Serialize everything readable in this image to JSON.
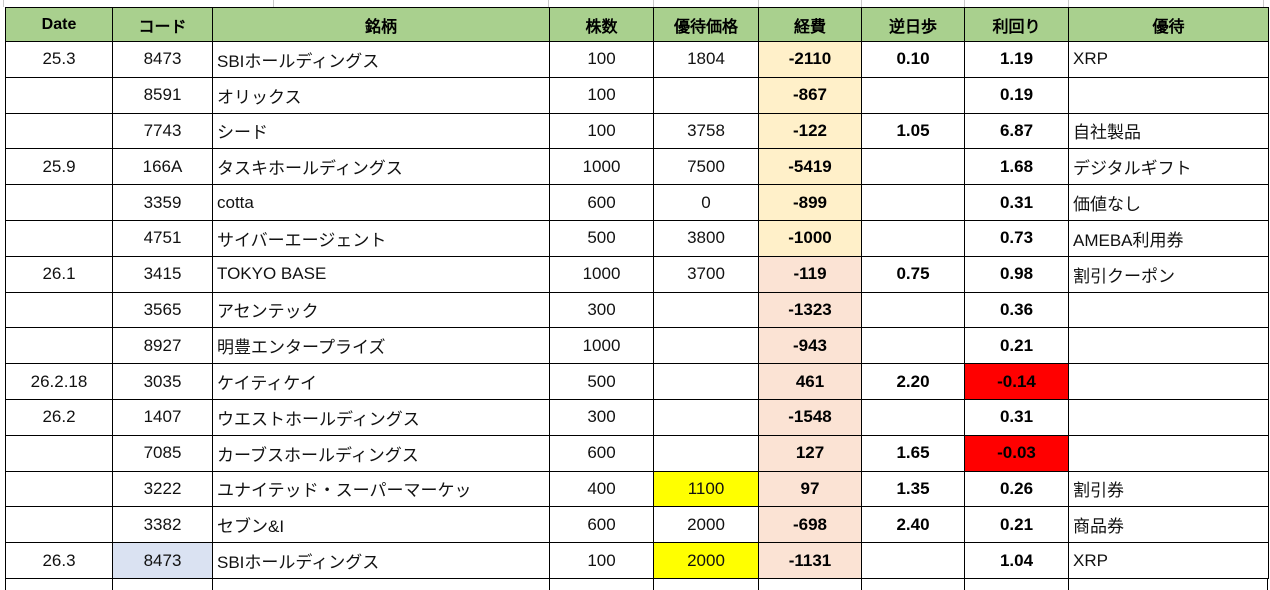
{
  "table": {
    "columns": [
      {
        "key": "date",
        "label": "Date"
      },
      {
        "key": "code",
        "label": "コード"
      },
      {
        "key": "name",
        "label": "銘柄"
      },
      {
        "key": "shares",
        "label": "株数"
      },
      {
        "key": "price",
        "label": "優待価格"
      },
      {
        "key": "expense",
        "label": "経費"
      },
      {
        "key": "gyakuhibu",
        "label": "逆日歩"
      },
      {
        "key": "yield",
        "label": "利回り"
      },
      {
        "key": "benefit",
        "label": "優待"
      }
    ],
    "rows": [
      {
        "date": "25.3",
        "code": "8473",
        "name": "SBIホールディングス",
        "shares": "100",
        "price": "1804",
        "expense": "-2110",
        "gyakuhibu": "0.10",
        "yield": "1.19",
        "benefit": "XRP",
        "expense_bg": "cream"
      },
      {
        "date": "",
        "code": "8591",
        "name": "オリックス",
        "shares": "100",
        "price": "",
        "expense": "-867",
        "gyakuhibu": "",
        "yield": "0.19",
        "benefit": "",
        "expense_bg": "cream"
      },
      {
        "date": "",
        "code": "7743",
        "name": "シード",
        "shares": "100",
        "price": "3758",
        "expense": "-122",
        "gyakuhibu": "1.05",
        "yield": "6.87",
        "benefit": "自社製品",
        "expense_bg": "cream"
      },
      {
        "date": "25.9",
        "code": "166A",
        "name": "タスキホールディングス",
        "shares": "1000",
        "price": "7500",
        "expense": "-5419",
        "gyakuhibu": "",
        "yield": "1.68",
        "benefit": "デジタルギフト",
        "expense_bg": "cream"
      },
      {
        "date": "",
        "code": "3359",
        "name": "cotta",
        "shares": "600",
        "price": "0",
        "expense": "-899",
        "gyakuhibu": "",
        "yield": "0.31",
        "benefit": "価値なし",
        "expense_bg": "cream"
      },
      {
        "date": "",
        "code": "4751",
        "name": "サイバーエージェント",
        "shares": "500",
        "price": "3800",
        "expense": "-1000",
        "gyakuhibu": "",
        "yield": "0.73",
        "benefit": "AMEBA利用券",
        "expense_bg": "cream"
      },
      {
        "date": "26.1",
        "code": "3415",
        "name": "TOKYO BASE",
        "shares": "1000",
        "price": "3700",
        "expense": "-119",
        "gyakuhibu": "0.75",
        "yield": "0.98",
        "benefit": "割引クーポン",
        "expense_bg": "pink"
      },
      {
        "date": "",
        "code": "3565",
        "name": "アセンテック",
        "shares": "300",
        "price": "",
        "expense": "-1323",
        "gyakuhibu": "",
        "yield": "0.36",
        "benefit": "",
        "expense_bg": "pink"
      },
      {
        "date": "",
        "code": "8927",
        "name": "明豊エンタープライズ",
        "shares": "1000",
        "price": "",
        "expense": "-943",
        "gyakuhibu": "",
        "yield": "0.21",
        "benefit": "",
        "expense_bg": "pink"
      },
      {
        "date": "26.2.18",
        "code": "3035",
        "name": "ケイティケイ",
        "shares": "500",
        "price": "",
        "expense": "461",
        "gyakuhibu": "2.20",
        "yield": "-0.14",
        "benefit": "",
        "expense_bg": "pink",
        "yield_bg": "red"
      },
      {
        "date": "26.2",
        "code": "1407",
        "name": "ウエストホールディングス",
        "shares": "300",
        "price": "",
        "expense": "-1548",
        "gyakuhibu": "",
        "yield": "0.31",
        "benefit": "",
        "expense_bg": "pink"
      },
      {
        "date": "",
        "code": "7085",
        "name": "カーブスホールディングス",
        "shares": "600",
        "price": "",
        "expense": "127",
        "gyakuhibu": "1.65",
        "yield": "-0.03",
        "benefit": "",
        "expense_bg": "pink",
        "yield_bg": "red"
      },
      {
        "date": "",
        "code": "3222",
        "name": "ユナイテッド・スーパーマーケッ",
        "shares": "400",
        "price": "1100",
        "expense": "97",
        "gyakuhibu": "1.35",
        "yield": "0.26",
        "benefit": "割引券",
        "expense_bg": "pink",
        "price_bg": "yellow"
      },
      {
        "date": "",
        "code": "3382",
        "name": "セブン&I",
        "shares": "600",
        "price": "2000",
        "expense": "-698",
        "gyakuhibu": "2.40",
        "yield": "0.21",
        "benefit": "商品券",
        "expense_bg": "pink"
      },
      {
        "date": "26.3",
        "code": "8473",
        "name": "SBIホールディングス",
        "shares": "100",
        "price": "2000",
        "expense": "-1131",
        "gyakuhibu": "",
        "yield": "1.04",
        "benefit": "XRP",
        "expense_bg": "pink",
        "price_bg": "yellow",
        "code_bg": "lavender"
      }
    ]
  },
  "colors": {
    "header_bg": "#A9D08E",
    "cream": "#FFF0C9",
    "pink": "#FBE3D4",
    "yellow": "#FFFF00",
    "red": "#FF0000",
    "lavender": "#DAE2F2"
  }
}
